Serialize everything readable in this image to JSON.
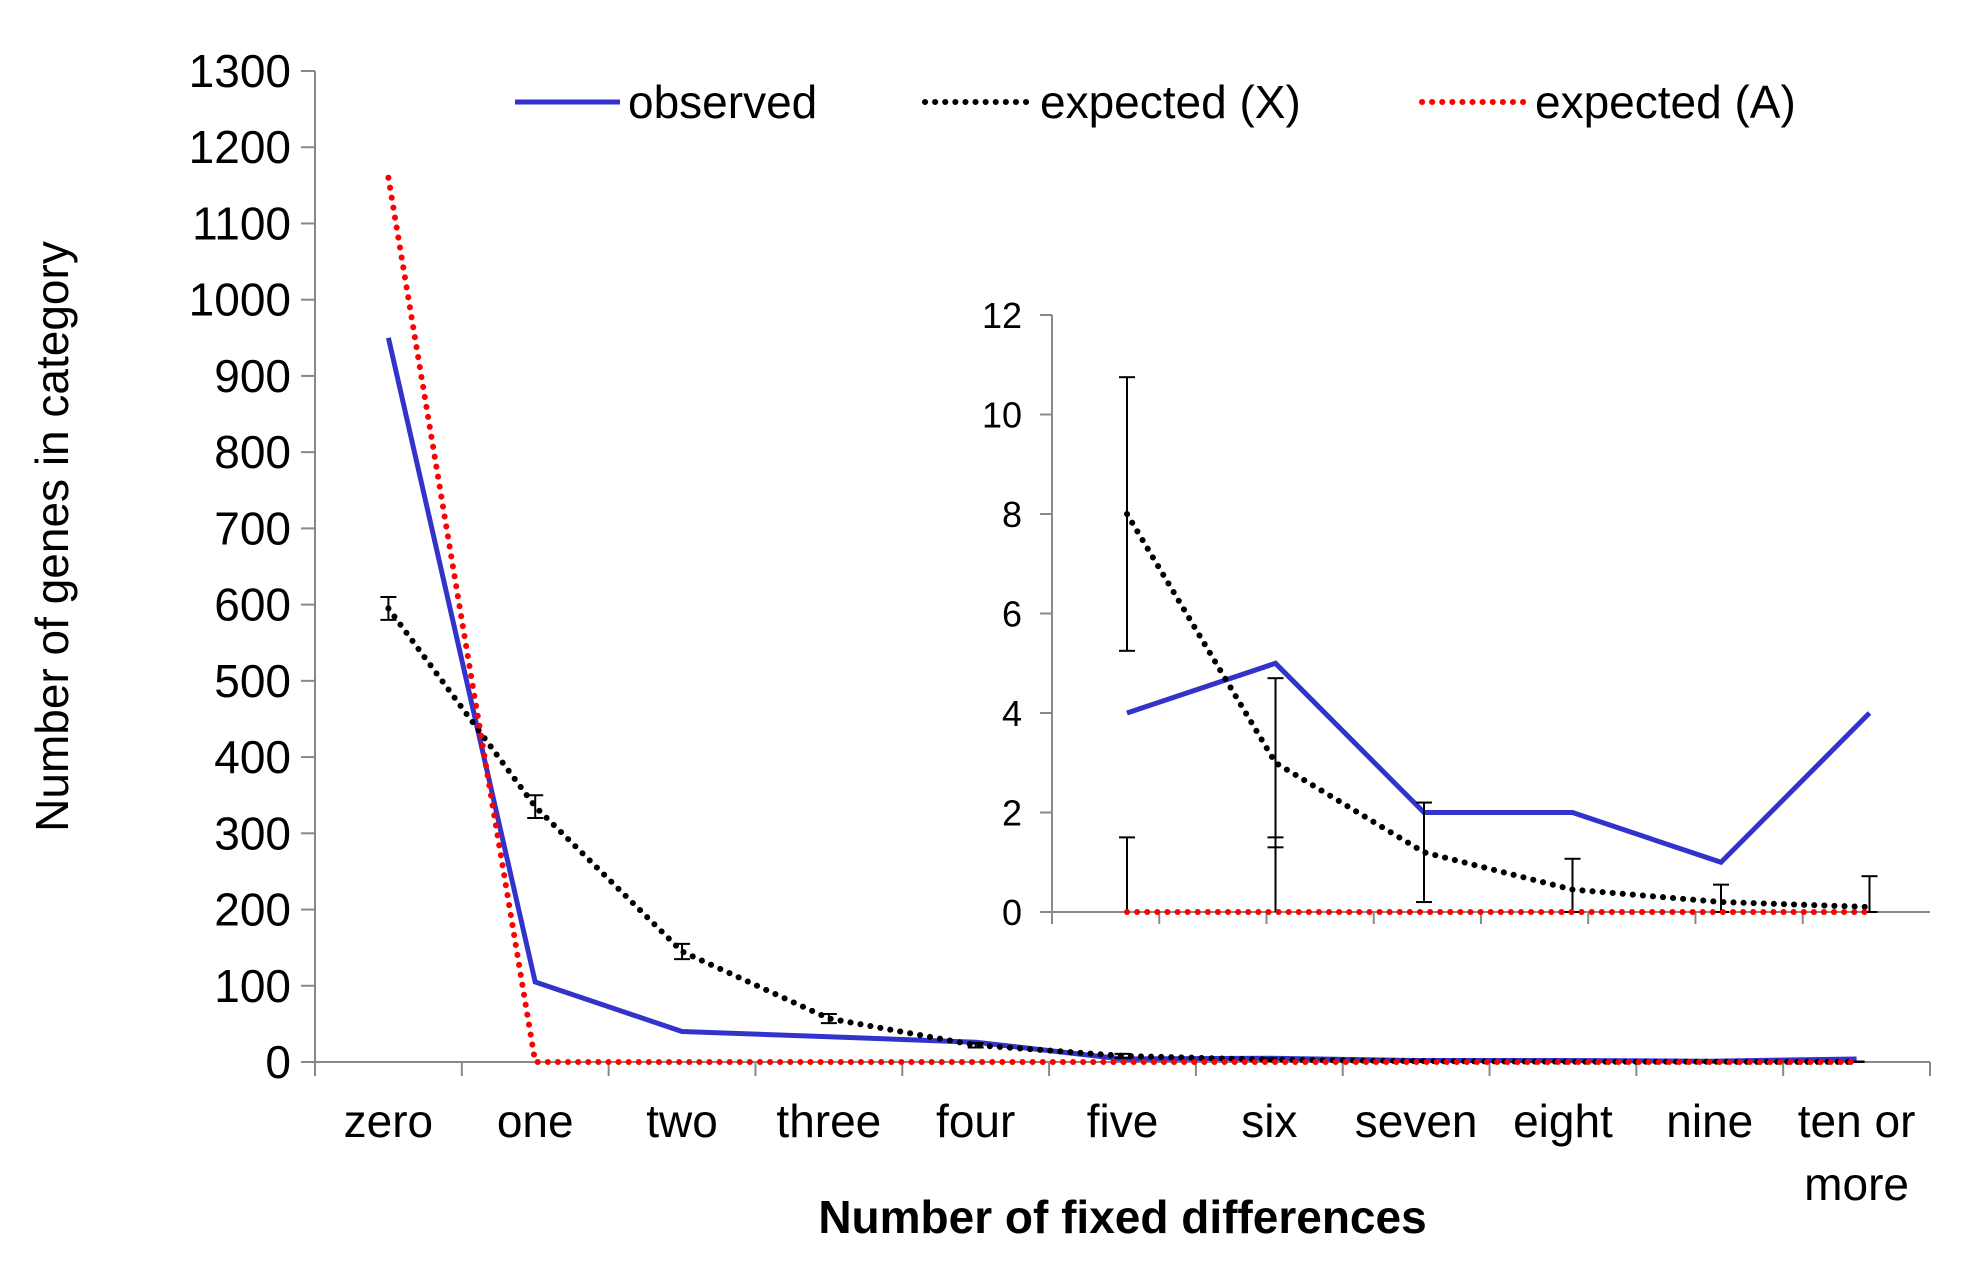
{
  "chart_data": [
    {
      "type": "line",
      "xlabel": "Number of fixed differences",
      "ylabel": "Number of genes in category",
      "categories": [
        [
          "zero"
        ],
        [
          "one"
        ],
        [
          "two"
        ],
        [
          "three"
        ],
        [
          "four"
        ],
        [
          "five"
        ],
        [
          "six"
        ],
        [
          "seven"
        ],
        [
          "eight"
        ],
        [
          "nine"
        ],
        [
          "ten or",
          "more"
        ]
      ],
      "ylim": [
        0,
        1300
      ],
      "yticks": [
        0,
        100,
        200,
        300,
        400,
        500,
        600,
        700,
        800,
        900,
        1000,
        1100,
        1200,
        1300
      ],
      "grid": false,
      "legend": {
        "placement": "top",
        "entries": [
          "observed",
          "expected (X)",
          "expected (A)"
        ]
      },
      "series": [
        {
          "name": "observed",
          "style": "solid",
          "color": "#3333cc",
          "values": [
            950,
            105,
            40,
            33,
            26,
            4,
            5,
            2,
            2,
            1,
            4
          ]
        },
        {
          "name": "expected (X)",
          "style": "dotted",
          "color": "#000000",
          "values": [
            595,
            335,
            145,
            57,
            22,
            8,
            3,
            1.2,
            0.45,
            0.2,
            0.1
          ],
          "error": [
            15,
            15,
            10,
            6,
            3,
            2.7,
            1.7,
            1,
            0.6,
            0.35,
            0.6
          ]
        },
        {
          "name": "expected (A)",
          "style": "dotted",
          "color": "#ff0000",
          "values": [
            1160,
            0,
            0,
            0,
            0,
            0,
            0,
            0,
            0,
            0,
            0
          ]
        }
      ]
    },
    {
      "type": "line",
      "inset": true,
      "categories": [
        "five",
        "six",
        "seven",
        "eight",
        "nine",
        "ten or more"
      ],
      "ylim": [
        0,
        12
      ],
      "yticks": [
        0,
        2,
        4,
        6,
        8,
        10,
        12
      ],
      "series": [
        {
          "name": "observed",
          "style": "solid",
          "color": "#3333cc",
          "values": [
            4,
            5,
            2,
            2,
            1,
            4
          ]
        },
        {
          "name": "expected (X)",
          "style": "dotted",
          "color": "#000000",
          "values": [
            8,
            3,
            1.2,
            0.45,
            0.2,
            0.1
          ],
          "error": [
            2.75,
            1.7,
            1.0,
            0.62,
            0.35,
            0.62
          ]
        },
        {
          "name": "expected (A)",
          "style": "dotted",
          "color": "#ff0000",
          "values": [
            0,
            0,
            0,
            0,
            0,
            0
          ],
          "error_upper": [
            1.5,
            1.5,
            0,
            0,
            0,
            0
          ]
        }
      ]
    }
  ]
}
